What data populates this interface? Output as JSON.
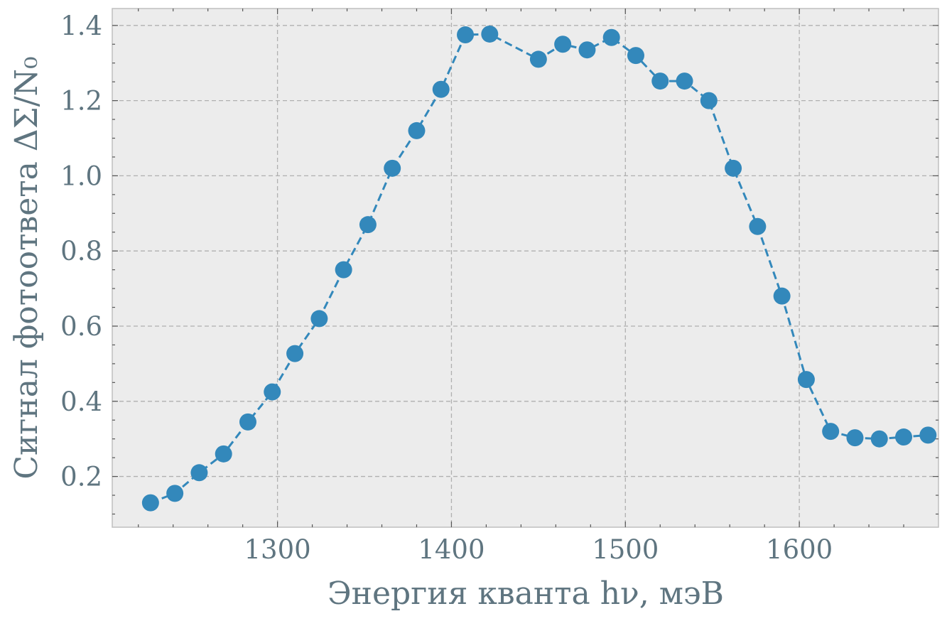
{
  "chart_data": {
    "type": "line",
    "title": "",
    "xlabel": "Энергия кванта hν, мэВ",
    "ylabel": "Сигнал фотоответа ΔΣ/N₀",
    "xlim": [
      1205,
      1680
    ],
    "ylim": [
      0.065,
      1.445
    ],
    "xticks": [
      1300,
      1400,
      1500,
      1600
    ],
    "yticks": [
      0.2,
      0.4,
      0.6,
      0.8,
      1.0,
      1.2,
      1.4
    ],
    "xtick_labels": [
      "1300",
      "1400",
      "1500",
      "1600"
    ],
    "ytick_labels": [
      "0.2",
      "0.4",
      "0.6",
      "0.8",
      "1.0",
      "1.2",
      "1.4"
    ],
    "grid": true,
    "colors": {
      "series": "#3388bb",
      "background": "#ececec",
      "text": "#5f7580"
    },
    "series": [
      {
        "x": [
          1227,
          1241,
          1255,
          1269,
          1283,
          1297,
          1310,
          1324,
          1338,
          1352,
          1366,
          1380,
          1394,
          1408,
          1422,
          1450,
          1464,
          1478,
          1492,
          1506,
          1520,
          1534,
          1548,
          1562,
          1576,
          1590,
          1604,
          1618,
          1632,
          1646,
          1660,
          1674
        ],
        "y": [
          0.13,
          0.155,
          0.21,
          0.26,
          0.345,
          0.425,
          0.527,
          0.62,
          0.75,
          0.87,
          1.02,
          1.12,
          1.23,
          1.375,
          1.377,
          1.31,
          1.35,
          1.335,
          1.368,
          1.32,
          1.252,
          1.252,
          1.2,
          1.02,
          0.865,
          0.68,
          0.458,
          0.32,
          0.303,
          0.3,
          0.305,
          0.31
        ]
      }
    ]
  }
}
